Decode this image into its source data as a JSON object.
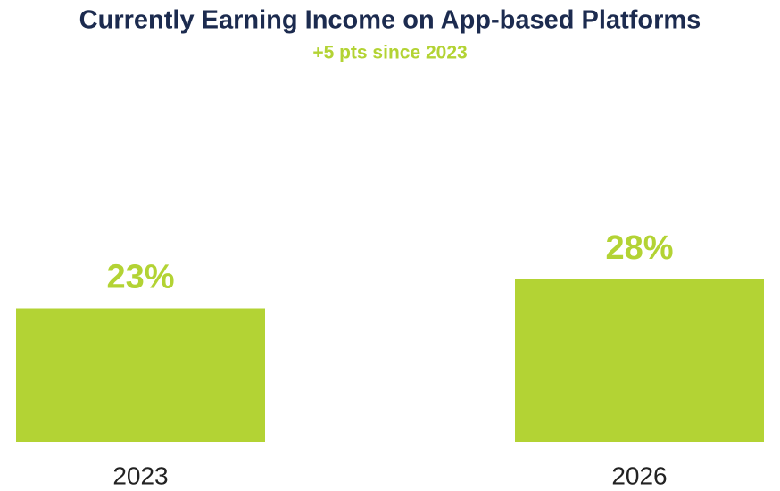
{
  "chart_data": {
    "type": "bar",
    "title": "Currently Earning Income on App-based Platforms",
    "subtitle": "+5 pts since 2023",
    "categories": [
      "2023",
      "2026"
    ],
    "values": [
      23,
      28
    ],
    "value_labels": [
      "23%",
      "28%"
    ],
    "color": "#b3d334",
    "ylim": [
      0,
      70
    ]
  }
}
